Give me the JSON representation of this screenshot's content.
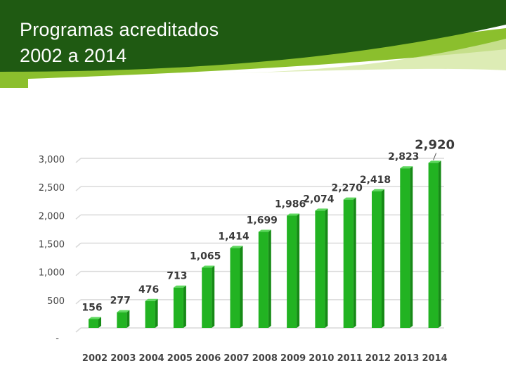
{
  "slide": {
    "title_line_1": "Programas acreditados",
    "title_line_2": "2002 a 2014"
  },
  "colors": {
    "header_dark": "#1f5a12",
    "header_light": "#8bbf2d",
    "bar_front": "#22b322",
    "bar_side": "#168a16",
    "bar_top": "#5ed85e"
  },
  "chart_data": {
    "type": "bar",
    "title": "Programas acreditados 2002 a 2014",
    "xlabel": "",
    "ylabel": "",
    "ylim": [
      0,
      3000
    ],
    "y_ticks": [
      0,
      500,
      1000,
      1500,
      2000,
      2500,
      3000
    ],
    "y_tick_labels": [
      "-",
      "500",
      "1,000",
      "1,500",
      "2,000",
      "2,500",
      "3,000"
    ],
    "grid": true,
    "categories": [
      "2002",
      "2003",
      "2004",
      "2005",
      "2006",
      "2007",
      "2008",
      "2009",
      "2010",
      "2011",
      "2012",
      "2013",
      "2014"
    ],
    "values": [
      156,
      277,
      476,
      713,
      1065,
      1414,
      1699,
      1986,
      2074,
      2270,
      2418,
      2823,
      2920
    ],
    "value_labels": [
      "156",
      "277",
      "476",
      "713",
      "1,065",
      "1,414",
      "1,699",
      "1,986",
      "2,074",
      "2,270",
      "2,418",
      "2,823",
      "2,920"
    ]
  }
}
